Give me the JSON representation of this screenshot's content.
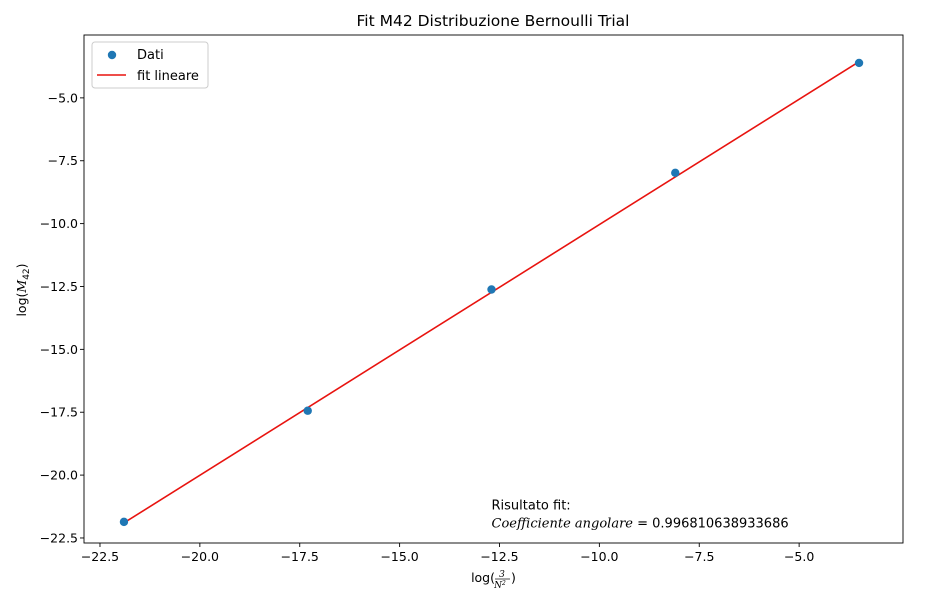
{
  "chart_data": {
    "type": "scatter",
    "title": "Fit M42 Distribuzione Bernoulli Trial",
    "xlabel": {
      "prefix": "log(",
      "frac_num": "3",
      "frac_den_base": "N",
      "frac_den_exp": "2",
      "suffix": ")"
    },
    "ylabel": {
      "prefix": "log(",
      "symbol": "M",
      "subscript": "42",
      "suffix": ")"
    },
    "xlim": [
      -22.9,
      -2.4
    ],
    "ylim": [
      -22.7,
      -2.5
    ],
    "xticks": [
      -22.5,
      -20.0,
      -17.5,
      -15.0,
      -12.5,
      -10.0,
      -7.5,
      -5.0
    ],
    "xtick_labels": [
      "−22.5",
      "−20.0",
      "−17.5",
      "−15.0",
      "−12.5",
      "−10.0",
      "−7.5",
      "−5.0"
    ],
    "yticks": [
      -22.5,
      -20.0,
      -17.5,
      -15.0,
      -12.5,
      -10.0,
      -7.5,
      -5.0
    ],
    "ytick_labels": [
      "−22.5",
      "−20.0",
      "−17.5",
      "−15.0",
      "−12.5",
      "−10.0",
      "−7.5",
      "−5.0"
    ],
    "grid": false,
    "legend_position": "top-left",
    "series": [
      {
        "name": "Dati",
        "kind": "scatter",
        "color": "#1f77b4",
        "x": [
          -21.9,
          -17.3,
          -12.7,
          -8.1,
          -3.5
        ],
        "y": [
          -21.86,
          -17.44,
          -12.62,
          -7.98,
          -3.61
        ]
      },
      {
        "name": "fit lineare",
        "kind": "line",
        "color": "#e8130f",
        "x": [
          -21.9,
          -3.5
        ],
        "y": [
          -21.9,
          -3.56
        ]
      }
    ],
    "annotation": {
      "line1": "Risultato fit:",
      "line2_label": "Coefficiente angolare",
      "line2_eq": " = ",
      "line2_value": "0.996810638933686",
      "x": -12.7,
      "y": -21.6
    }
  }
}
